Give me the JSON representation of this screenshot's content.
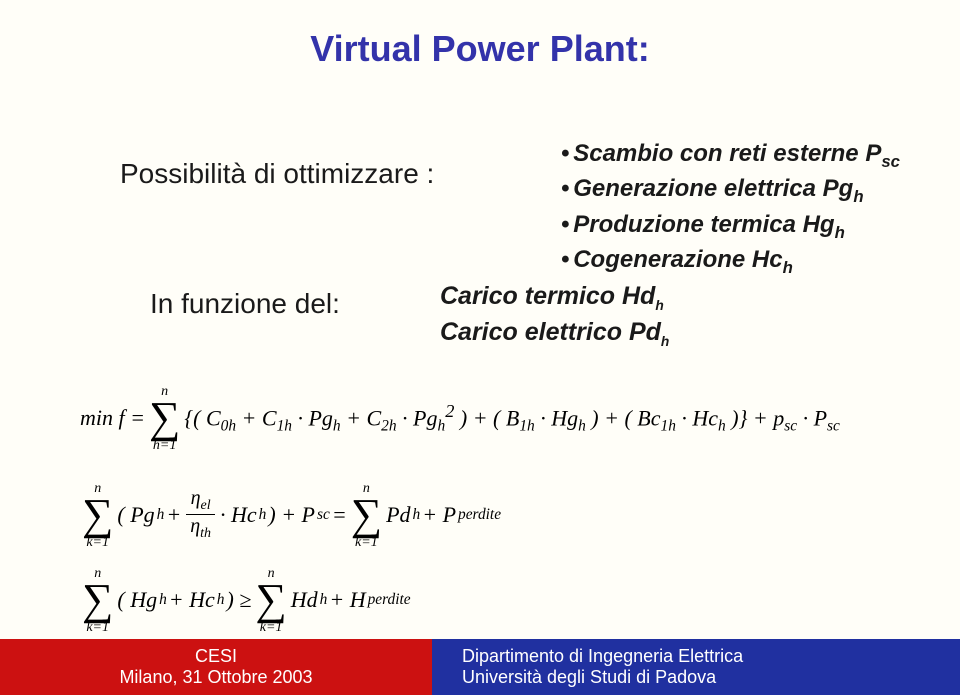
{
  "title": "Virtual Power Plant:",
  "optimize_label": "Possibilità di ottimizzare :",
  "bullets": {
    "b1_pre": "Scambio con reti esterne P",
    "b1_sub": "sc",
    "b2_pre": "Generazione elettrica Pg",
    "b2_sub": "h",
    "b3_pre": "Produzione termica Hg",
    "b3_sub": "h",
    "b4_pre": "Cogenerazione Hc",
    "b4_sub": "h"
  },
  "func_label": "In funzione del:",
  "loads": {
    "l1_pre": "Carico termico Hd",
    "l1_sub": "h",
    "l2_pre": "Carico elettrico Pd",
    "l2_sub": "h"
  },
  "eq1": {
    "lhs": "min f =",
    "sum_top": "n",
    "sum_bot": "h=1",
    "body": "{( C",
    "c0": "0h",
    "plus1": " + C",
    "c1": "1h",
    "pg": " · Pg",
    "h1": "h",
    "plus2": " + C",
    "c2": "2h",
    "pg2": " · Pg",
    "h2": "h",
    "sq": "2",
    "after_sq": " ) + ( B",
    "b1": "1h",
    "hg": " · Hg",
    "h3": "h",
    "after_hg": " ) + ( Bc",
    "bc1": "1h",
    "hc": " · Hc",
    "h4": "h",
    "close": " )} + p",
    "psc1": "sc",
    "dot": " · P",
    "psc2": "sc"
  },
  "eq2": {
    "sum_top": "n",
    "sum_bot": "k=1",
    "open": "( Pg",
    "h1": "h",
    "plus": " + ",
    "frac_num": "η",
    "frac_num_sub": "el",
    "frac_den": "η",
    "frac_den_sub": "th",
    "hc": " · Hc",
    "h2": "h",
    "close": " ) + P",
    "sc": "sc",
    "eq": " = ",
    "sum2_top": "n",
    "sum2_bot": "k=1",
    "pd": "Pd",
    "h3": "h",
    "plusP": " + P",
    "perdite": "perdite"
  },
  "eq3": {
    "sum_top": "n",
    "sum_bot": "k=1",
    "open": "( Hg",
    "h1": "h",
    "plus": " + Hc",
    "h2": "h",
    "close": " ) ≥ ",
    "sum2_top": "n",
    "sum2_bot": "k=1",
    "hd": "Hd",
    "h3": "h",
    "plusH": " + H",
    "perdite": "perdite"
  },
  "footer": {
    "left1": "CESI",
    "left2": "Milano, 31 Ottobre 2003",
    "right1": "Dipartimento di Ingegneria Elettrica",
    "right2": "Università degli Studi di Padova"
  },
  "colors": {
    "title": "#3333aa",
    "background": "#fffef8",
    "red": "#cc1111",
    "blue": "#2030a0"
  }
}
